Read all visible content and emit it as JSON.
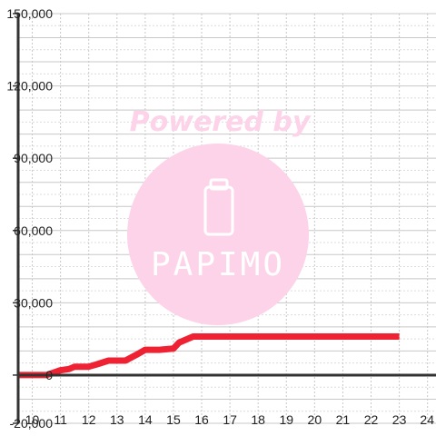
{
  "chart_data": {
    "type": "line",
    "title": "",
    "xlabel": "",
    "ylabel": "",
    "xlim": [
      9.5,
      24.3
    ],
    "ylim": [
      -20000,
      150000
    ],
    "x_ticks": [
      10,
      11,
      12,
      13,
      14,
      15,
      16,
      17,
      18,
      19,
      20,
      21,
      22,
      23,
      24
    ],
    "y_ticks": [
      -20000,
      0,
      30000,
      60000,
      90000,
      120000,
      150000
    ],
    "y_tick_labels": [
      "-20,000",
      "0",
      "30,000",
      "60,000",
      "90,000",
      "120,000",
      "150,000"
    ],
    "grid": "dotted",
    "legend": "none",
    "series": [
      {
        "color": "#ee2233",
        "x": [
          9.5,
          10.5,
          10.7,
          11.0,
          11.3,
          11.5,
          12.0,
          12.3,
          12.7,
          13.0,
          13.3,
          13.7,
          14.0,
          14.5,
          15.0,
          15.2,
          15.7,
          16.0,
          17.0,
          18.0,
          19.0,
          20.0,
          21.0,
          22.0,
          23.0
        ],
        "y": [
          0,
          0,
          800,
          2000,
          2500,
          3500,
          3500,
          4500,
          6000,
          6000,
          6000,
          8500,
          10500,
          10500,
          11000,
          13500,
          16000,
          16000,
          16000,
          16000,
          16000,
          16000,
          16000,
          16000,
          16000
        ]
      }
    ]
  },
  "watermark": {
    "powered_by": "Powered by",
    "brand": "PAPIMO",
    "color": "#fcd3e8"
  }
}
